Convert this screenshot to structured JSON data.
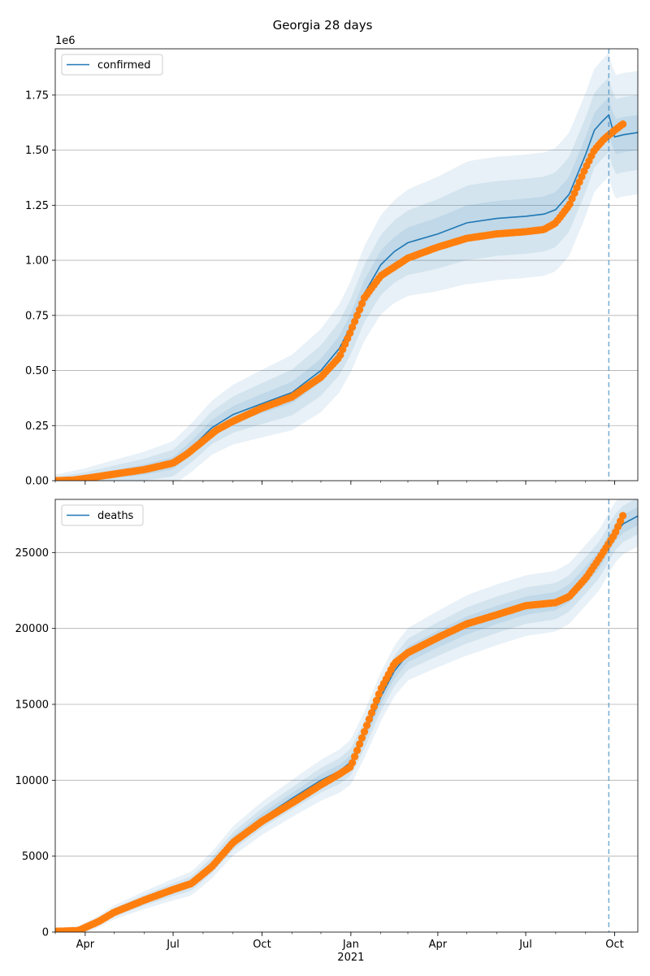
{
  "title": "Georgia 28 days",
  "colors": {
    "model": "#1f77b4",
    "observed": "#ff7f0e",
    "band": "#1f77b4",
    "grid": "#b0b0b0"
  },
  "chart_data": [
    {
      "type": "line",
      "legend": "confirmed",
      "legend_position": "top-left",
      "grid": "horizontal",
      "y_offset_label": "1e6",
      "ylim": [
        0,
        1.96
      ],
      "yticks": [
        0.0,
        0.25,
        0.5,
        0.75,
        1.0,
        1.25,
        1.5,
        1.75
      ],
      "ytick_labels": [
        "0.00",
        "0.25",
        "0.50",
        "0.75",
        "1.00",
        "1.25",
        "1.50",
        "1.75"
      ],
      "xlim": [
        "2020-03-01",
        "2021-10-25"
      ],
      "xticks": [
        "2020-04-01",
        "2020-07-01",
        "2020-10-01",
        "2021-01-01",
        "2021-04-01",
        "2021-07-01",
        "2021-10-01"
      ],
      "xtick_labels": [
        "",
        "",
        "",
        "",
        "",
        "",
        ""
      ],
      "forecast_start": "2021-09-25",
      "model_mean": {
        "x": [
          "2020-03-01",
          "2020-04-01",
          "2020-05-01",
          "2020-06-01",
          "2020-07-01",
          "2020-07-20",
          "2020-08-10",
          "2020-09-01",
          "2020-10-01",
          "2020-11-01",
          "2020-12-01",
          "2020-12-20",
          "2021-01-01",
          "2021-01-15",
          "2021-02-01",
          "2021-02-15",
          "2021-03-01",
          "2021-04-01",
          "2021-05-01",
          "2021-06-01",
          "2021-07-01",
          "2021-07-20",
          "2021-08-01",
          "2021-08-15",
          "2021-09-01",
          "2021-09-10",
          "2021-09-18",
          "2021-09-25",
          "2021-10-01",
          "2021-10-10",
          "2021-10-25"
        ],
        "y": [
          0.0,
          0.01,
          0.03,
          0.05,
          0.08,
          0.15,
          0.24,
          0.3,
          0.35,
          0.4,
          0.5,
          0.6,
          0.7,
          0.85,
          0.98,
          1.04,
          1.08,
          1.12,
          1.17,
          1.19,
          1.2,
          1.21,
          1.23,
          1.3,
          1.48,
          1.59,
          1.63,
          1.66,
          1.56,
          1.57,
          1.58
        ]
      },
      "band_widths": [
        0.08,
        0.17,
        0.28
      ],
      "observed": {
        "x": [
          "2020-03-01",
          "2020-03-20",
          "2020-04-01",
          "2020-05-01",
          "2020-06-01",
          "2020-07-01",
          "2020-07-15",
          "2020-08-01",
          "2020-08-15",
          "2020-09-01",
          "2020-10-01",
          "2020-11-01",
          "2020-12-01",
          "2020-12-20",
          "2021-01-01",
          "2021-01-15",
          "2021-02-01",
          "2021-02-15",
          "2021-03-01",
          "2021-04-01",
          "2021-05-01",
          "2021-06-01",
          "2021-07-01",
          "2021-07-20",
          "2021-08-01",
          "2021-08-15",
          "2021-09-01",
          "2021-09-10",
          "2021-09-20",
          "2021-10-01",
          "2021-10-10"
        ],
        "y": [
          0.0,
          0.003,
          0.01,
          0.03,
          0.05,
          0.08,
          0.12,
          0.18,
          0.23,
          0.27,
          0.33,
          0.38,
          0.47,
          0.56,
          0.68,
          0.83,
          0.93,
          0.97,
          1.01,
          1.06,
          1.1,
          1.12,
          1.13,
          1.14,
          1.17,
          1.25,
          1.42,
          1.5,
          1.55,
          1.59,
          1.62
        ]
      }
    },
    {
      "type": "line",
      "legend": "deaths",
      "legend_position": "top-left",
      "grid": "horizontal",
      "ylim": [
        0,
        28500
      ],
      "yticks": [
        0,
        5000,
        10000,
        15000,
        20000,
        25000
      ],
      "ytick_labels": [
        "0",
        "5000",
        "10000",
        "15000",
        "20000",
        "25000"
      ],
      "xlim": [
        "2020-03-01",
        "2021-10-25"
      ],
      "xticks": [
        "2020-04-01",
        "2020-07-01",
        "2020-10-01",
        "2021-01-01",
        "2021-04-01",
        "2021-07-01",
        "2021-10-01"
      ],
      "xtick_labels": [
        "Apr",
        "Jul",
        "Oct",
        "Jan",
        "Apr",
        "Jul",
        "Oct"
      ],
      "xtick_year_label": "2021",
      "forecast_start": "2021-09-25",
      "model_mean": {
        "x": [
          "2020-03-01",
          "2020-03-25",
          "2020-04-15",
          "2020-05-01",
          "2020-06-01",
          "2020-07-01",
          "2020-07-20",
          "2020-08-10",
          "2020-09-01",
          "2020-10-01",
          "2020-11-01",
          "2020-12-01",
          "2020-12-20",
          "2021-01-01",
          "2021-01-15",
          "2021-02-01",
          "2021-02-15",
          "2021-03-01",
          "2021-04-01",
          "2021-05-01",
          "2021-06-01",
          "2021-07-01",
          "2021-08-01",
          "2021-08-15",
          "2021-09-01",
          "2021-09-15",
          "2021-09-25",
          "2021-10-01",
          "2021-10-10",
          "2021-10-25"
        ],
        "y": [
          50,
          80,
          700,
          1300,
          2100,
          2800,
          3200,
          4400,
          6000,
          7500,
          8800,
          10000,
          10600,
          11200,
          13000,
          15500,
          17200,
          18300,
          19300,
          20200,
          20900,
          21500,
          21800,
          22300,
          23500,
          24500,
          25600,
          26300,
          26900,
          27400
        ]
      },
      "band_widths": [
        600,
        1200,
        2000
      ],
      "observed": {
        "x": [
          "2020-03-01",
          "2020-03-25",
          "2020-04-15",
          "2020-05-01",
          "2020-06-01",
          "2020-07-01",
          "2020-07-20",
          "2020-08-10",
          "2020-09-01",
          "2020-10-01",
          "2020-11-01",
          "2020-12-01",
          "2020-12-20",
          "2021-01-01",
          "2021-01-15",
          "2021-02-01",
          "2021-02-15",
          "2021-03-01",
          "2021-04-01",
          "2021-05-01",
          "2021-06-01",
          "2021-07-01",
          "2021-08-01",
          "2021-08-15",
          "2021-09-01",
          "2021-09-15",
          "2021-09-25",
          "2021-10-01",
          "2021-10-10"
        ],
        "y": [
          50,
          100,
          700,
          1300,
          2100,
          2800,
          3200,
          4300,
          5900,
          7300,
          8500,
          9700,
          10400,
          10900,
          13200,
          16000,
          17700,
          18400,
          19400,
          20300,
          20900,
          21500,
          21700,
          22100,
          23300,
          24600,
          25600,
          26200,
          27500
        ]
      }
    }
  ]
}
